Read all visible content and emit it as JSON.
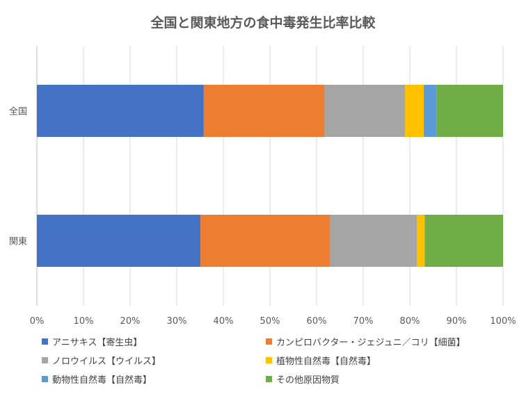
{
  "chart_data": {
    "type": "bar",
    "orientation": "horizontal",
    "stacked": "percent",
    "title": "全国と関東地方の食中毒発生比率比較",
    "categories": [
      "全国",
      "関東"
    ],
    "series": [
      {
        "name": "アニサキス【寄生虫】",
        "color": "#4472C4",
        "values": [
          35.8,
          35.1
        ]
      },
      {
        "name": "カンピロバクター・ジェジュニ／コリ【細菌】",
        "color": "#ED7D31",
        "values": [
          25.9,
          27.8
        ]
      },
      {
        "name": "ノロウイルス【ウイルス】",
        "color": "#A5A5A5",
        "values": [
          17.3,
          18.6
        ]
      },
      {
        "name": "植物性自然毒【自然毒】",
        "color": "#FFC000",
        "values": [
          4.0,
          1.7
        ]
      },
      {
        "name": "動物性自然毒【自然毒】",
        "color": "#5B9BD5",
        "values": [
          2.8,
          0.0
        ]
      },
      {
        "name": "その他原因物質",
        "color": "#70AD47",
        "values": [
          14.2,
          16.8
        ]
      }
    ],
    "xlim": [
      0,
      100
    ],
    "xticks": [
      "0%",
      "10%",
      "20%",
      "30%",
      "40%",
      "50%",
      "60%",
      "70%",
      "80%",
      "90%",
      "100%"
    ],
    "grid": true,
    "legend_position": "bottom"
  }
}
